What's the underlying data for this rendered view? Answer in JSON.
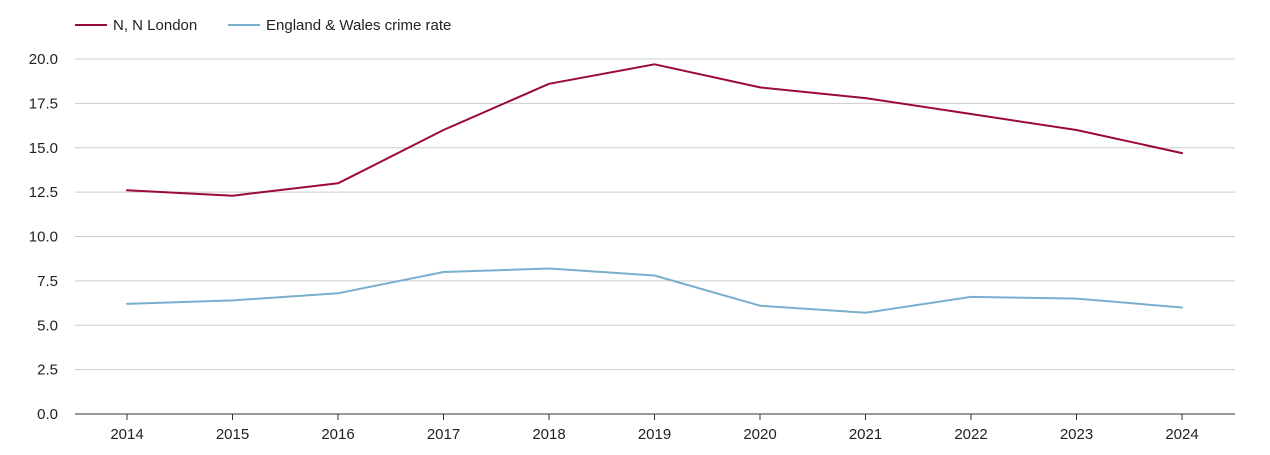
{
  "chart_data": {
    "type": "line",
    "title": "",
    "xlabel": "",
    "ylabel": "",
    "x": [
      "2014",
      "2015",
      "2016",
      "2017",
      "2018",
      "2019",
      "2020",
      "2021",
      "2022",
      "2023",
      "2024"
    ],
    "ylim": [
      0,
      20
    ],
    "yticks": [
      "0.0",
      "2.5",
      "5.0",
      "7.5",
      "10.0",
      "12.5",
      "15.0",
      "17.5",
      "20.0"
    ],
    "grid": true,
    "legend_position": "top-left",
    "series": [
      {
        "name": "N, N London",
        "color": "#9b0a35",
        "values": [
          12.6,
          12.3,
          13.0,
          16.0,
          18.6,
          19.7,
          18.4,
          17.8,
          16.9,
          16.0,
          14.7
        ]
      },
      {
        "name": "England & Wales crime rate",
        "color": "#7aaecf",
        "values": [
          6.2,
          6.4,
          6.8,
          8.0,
          8.2,
          7.8,
          6.1,
          5.7,
          6.6,
          6.5,
          6.0
        ]
      }
    ]
  }
}
